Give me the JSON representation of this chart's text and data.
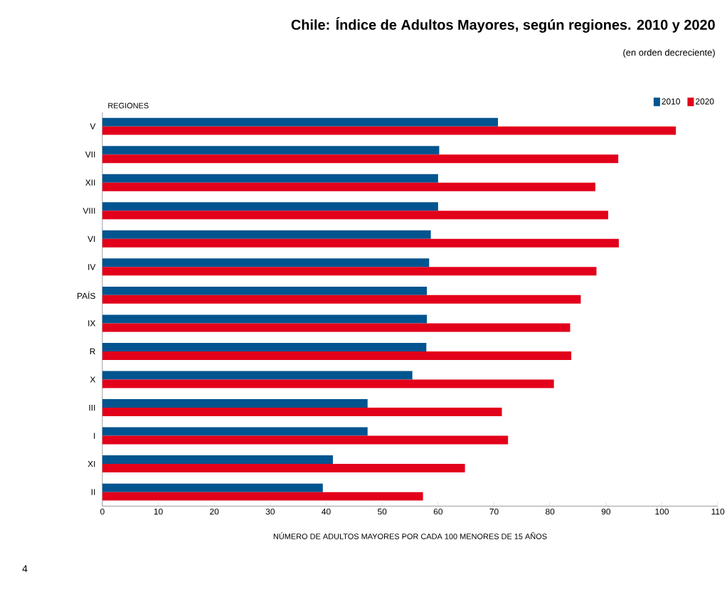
{
  "chart_data": {
    "type": "bar",
    "orientation": "horizontal",
    "title": "Chile: Índice de Adultos Mayores, según regiones. 2010 y 2020",
    "subtitle": "(en orden decreciente)",
    "xlabel": "NÚMERO DE ADULTOS MAYORES POR CADA 100 MENORES DE 15 AÑOS",
    "ylabel": "REGIONES",
    "categories": [
      "V",
      "VII",
      "XII",
      "VIII",
      "VI",
      "IV",
      "PAÍS",
      "IX",
      "R",
      "X",
      "III",
      "I",
      "XI",
      "II"
    ],
    "series": [
      {
        "name": "2010",
        "color": "#00548f",
        "values": [
          70.7,
          60.2,
          60.0,
          60.0,
          58.7,
          58.4,
          58.0,
          58.0,
          57.9,
          55.4,
          47.4,
          47.4,
          41.2,
          39.4
        ]
      },
      {
        "name": "2020",
        "color": "#e2001a",
        "values": [
          102.5,
          92.2,
          88.1,
          90.4,
          92.3,
          88.3,
          85.5,
          83.6,
          83.8,
          80.7,
          71.4,
          72.5,
          64.8,
          57.3
        ]
      }
    ],
    "xlim": [
      0,
      110
    ],
    "xticks": [
      0,
      10,
      20,
      30,
      40,
      50,
      60,
      70,
      80,
      90,
      100,
      110
    ],
    "legend": "top right",
    "grid": false,
    "annotations": [
      "4"
    ]
  }
}
